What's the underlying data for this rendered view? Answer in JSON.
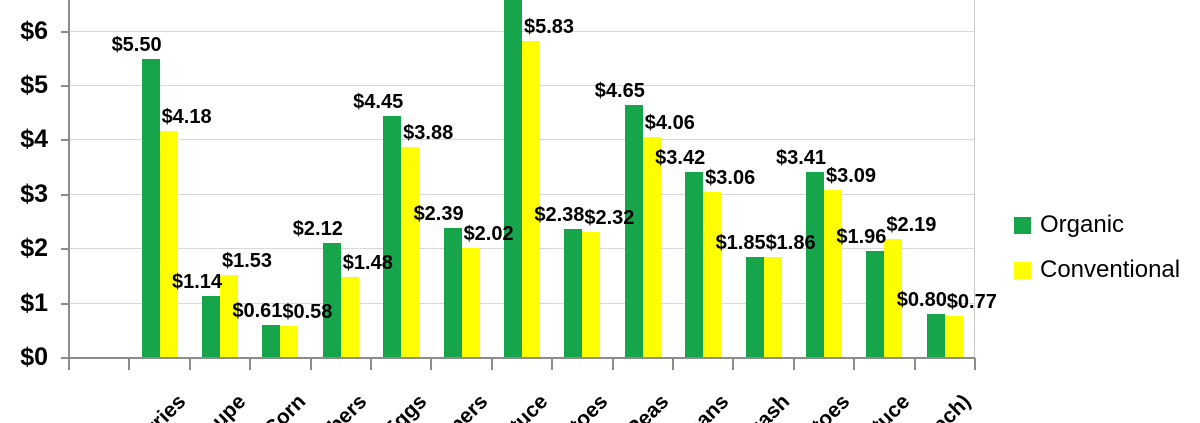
{
  "chart_data": {
    "type": "bar",
    "title": "",
    "description": "Grouped bar chart comparing Organic vs Conventional prices per item; image is cropped on top and bottom edges",
    "categories_visible_fragments": [
      "rries",
      "oupe",
      "Corn",
      "bers",
      "Eggs",
      "pers",
      "tuce",
      "toes",
      "Peas",
      "eans",
      "uash",
      "toes",
      "tuce",
      "ach)"
    ],
    "leading_empty_category_slot": true,
    "series": [
      {
        "name": "Organic",
        "color": "#17a54b",
        "values": [
          5.5,
          1.14,
          0.61,
          2.12,
          4.45,
          2.39,
          null,
          2.38,
          4.65,
          3.42,
          1.85,
          3.41,
          1.96,
          0.8
        ],
        "labels": [
          "$5.50",
          "$1.14",
          "$0.61",
          "$2.12",
          "$4.45",
          "$2.39",
          "",
          "$2.38",
          "$4.65",
          "$3.42",
          "$1.85",
          "$3.41",
          "$1.96",
          "$0.80"
        ]
      },
      {
        "name": "Conventional",
        "color": "#ffff00",
        "values": [
          4.18,
          1.53,
          0.58,
          1.48,
          3.88,
          2.02,
          5.83,
          2.32,
          4.06,
          3.06,
          1.86,
          3.09,
          2.19,
          0.77
        ],
        "labels": [
          "$4.18",
          "$1.53",
          "$0.58",
          "$1.48",
          "$3.88",
          "$2.02",
          "$5.83",
          "$2.32",
          "$4.06",
          "$3.06",
          "$1.86",
          "$3.09",
          "$2.19",
          "$0.77"
        ]
      }
    ],
    "y_tick_labels": [
      "$0",
      "$1",
      "$2",
      "$3",
      "$4",
      "$5",
      "$6"
    ],
    "ylim_visible": [
      0,
      6.58
    ],
    "grid": true,
    "legend_position": "right",
    "notes": "Organic bar of the 7th visible item extends past the top crop of the image, so its value label is not visible. Bottom category labels are rotated 45 degrees and truncated by the image crop."
  },
  "legend": {
    "items": [
      {
        "label": "Organic",
        "color": "#17a54b"
      },
      {
        "label": "Conventional",
        "color": "#ffff00"
      }
    ]
  },
  "colors": {
    "organic": "#17a54b",
    "conventional": "#ffff00",
    "gridline": "#d9d9d9",
    "axis": "#8c8c8c",
    "text": "#000000"
  }
}
